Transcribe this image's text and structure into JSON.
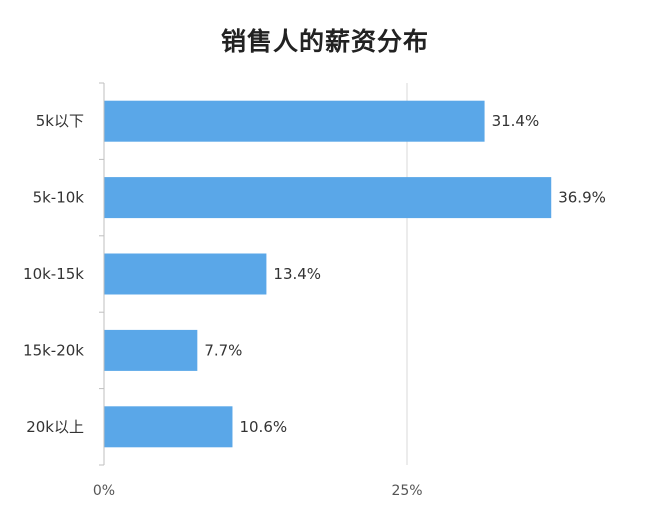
{
  "chart_data": {
    "type": "bar",
    "orientation": "horizontal",
    "title": "销售人的薪资分布",
    "categories": [
      "5k以下",
      "5k-10k",
      "10k-15k",
      "15k-20k",
      "20k以上"
    ],
    "values": [
      31.4,
      36.9,
      13.4,
      7.7,
      10.6
    ],
    "value_labels": [
      "31.4%",
      "36.9%",
      "13.4%",
      "7.7%",
      "10.6%"
    ],
    "x_ticks": [
      0,
      25
    ],
    "x_tick_labels": [
      "0%",
      "25%"
    ],
    "xlim": [
      0,
      37
    ],
    "bar_color": "#5aa7e8",
    "grid": true
  }
}
